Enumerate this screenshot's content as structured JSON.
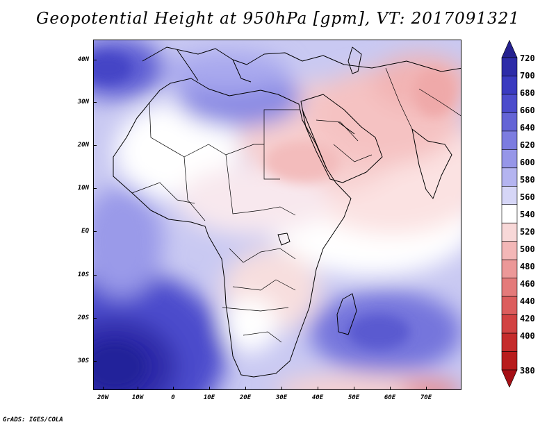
{
  "title": "Geopotential Height at 950hPa [gpm], VT: 2017091321",
  "credit": "GrADS: IGES/COLA",
  "map": {
    "variable": "Geopotential Height",
    "level": "950hPa",
    "units": "gpm",
    "valid_time": "2017091321",
    "lat_labels": [
      "40N",
      "30N",
      "20N",
      "10N",
      "EQ",
      "10S",
      "20S",
      "30S"
    ],
    "lon_labels": [
      "20W",
      "10W",
      "0",
      "10E",
      "20E",
      "30E",
      "40E",
      "50E",
      "60E",
      "70E"
    ]
  },
  "colorbar": {
    "levels": [
      "720",
      "700",
      "680",
      "660",
      "640",
      "620",
      "600",
      "580",
      "560",
      "540",
      "520",
      "500",
      "480",
      "460",
      "440",
      "420",
      "400",
      "380"
    ],
    "colors": [
      "#25218f",
      "#2d2ba8",
      "#3a3ac0",
      "#4c4ccc",
      "#6464d6",
      "#7c7ce0",
      "#9696e8",
      "#b4b4f0",
      "#d6d6f7",
      "#ffffff",
      "#f8d8d8",
      "#f3b7b7",
      "#ec9898",
      "#e47a7a",
      "#dc5d5d",
      "#d24242",
      "#c52b2b",
      "#b81c1c",
      "#a50f15"
    ]
  }
}
